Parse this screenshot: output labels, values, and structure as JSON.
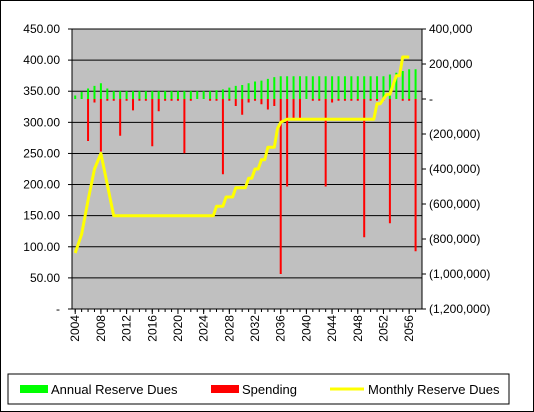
{
  "chart_data": {
    "type": "bar",
    "plot_background": "#c0c0c0",
    "grid": true,
    "legend_position": "bottom",
    "x_tick_labels": [
      "2004",
      "2008",
      "2012",
      "2016",
      "2020",
      "2024",
      "2028",
      "2032",
      "2036",
      "2040",
      "2044",
      "2048",
      "2052",
      "2056"
    ],
    "x_tick_years": [
      2004,
      2008,
      2012,
      2016,
      2020,
      2024,
      2028,
      2032,
      2036,
      2040,
      2044,
      2048,
      2052,
      2056
    ],
    "y_left": {
      "ylim": [
        0,
        450
      ],
      "tick_values": [
        0,
        50,
        100,
        150,
        200,
        250,
        300,
        350,
        400,
        450
      ],
      "tick_labels": [
        "-",
        "50.00",
        "100.00",
        "150.00",
        "200.00",
        "250.00",
        "300.00",
        "350.00",
        "400.00",
        "450.00"
      ]
    },
    "y_right": {
      "ylim": [
        -1200000,
        400000
      ],
      "tick_values": [
        400000,
        200000,
        0,
        -200000,
        -400000,
        -600000,
        -800000,
        -1000000,
        -1200000
      ],
      "tick_labels": [
        "400,000",
        "200,000",
        "-",
        "(200,000)",
        "(400,000)",
        "(600,000)",
        "(800,000)",
        "(1,000,000)",
        "(1,200,000)"
      ]
    },
    "years": [
      2004,
      2005,
      2006,
      2007,
      2008,
      2009,
      2010,
      2011,
      2012,
      2013,
      2014,
      2015,
      2016,
      2017,
      2018,
      2019,
      2020,
      2021,
      2022,
      2023,
      2024,
      2025,
      2026,
      2027,
      2028,
      2029,
      2030,
      2031,
      2032,
      2033,
      2034,
      2035,
      2036,
      2037,
      2038,
      2039,
      2040,
      2041,
      2042,
      2043,
      2044,
      2045,
      2046,
      2047,
      2048,
      2049,
      2050,
      2051,
      2052,
      2053,
      2054,
      2055,
      2056,
      2057
    ],
    "series": [
      {
        "name": "Annual Reserve Dues",
        "color": "#00ff00",
        "axis": "right",
        "values": [
          20000,
          40000,
          60000,
          75000,
          90000,
          60000,
          45000,
          45000,
          45000,
          45000,
          45000,
          45000,
          45000,
          45000,
          45000,
          45000,
          45000,
          45000,
          45000,
          45000,
          45000,
          45000,
          50000,
          55000,
          65000,
          75000,
          80000,
          90000,
          100000,
          105000,
          115000,
          125000,
          130000,
          130000,
          130000,
          130000,
          130000,
          130000,
          130000,
          130000,
          130000,
          130000,
          130000,
          130000,
          130000,
          130000,
          130000,
          130000,
          130000,
          140000,
          150000,
          160000,
          170000,
          170000
        ]
      },
      {
        "name": "Spending",
        "color": "#ff0000",
        "axis": "right",
        "values": [
          0,
          0,
          -240000,
          -20000,
          -300000,
          -10000,
          -10000,
          -210000,
          -10000,
          -65000,
          -10000,
          -10000,
          -270000,
          -70000,
          -10000,
          -10000,
          -10000,
          -310000,
          -10000,
          0,
          0,
          -10000,
          -10000,
          -430000,
          -10000,
          -40000,
          -90000,
          -20000,
          -10000,
          -30000,
          -60000,
          -40000,
          -1000000,
          -500000,
          -110000,
          -120000,
          0,
          -10000,
          -10000,
          -500000,
          -20000,
          -10000,
          -10000,
          -10000,
          -10000,
          -790000,
          -10000,
          -10000,
          -10000,
          -710000,
          0,
          -10000,
          -10000,
          -870000
        ]
      },
      {
        "name": "Monthly Reserve Dues",
        "color": "#ffff00",
        "axis": "left",
        "line_years": [
          2004,
          2005,
          2006,
          2007,
          2008,
          2010,
          2024,
          2025.5,
          2026,
          2027,
          2027.5,
          2028.5,
          2029,
          2030.5,
          2031,
          2031.5,
          2032,
          2032.5,
          2033,
          2033.5,
          2034,
          2035,
          2035.5,
          2036,
          2037,
          2050,
          2050.5,
          2051,
          2051.5,
          2052.5,
          2053,
          2054,
          2054.5,
          2055,
          2056
        ],
        "line_values": [
          90,
          120,
          175,
          225,
          250,
          150,
          150,
          150,
          165,
          165,
          180,
          180,
          195,
          195,
          210,
          210,
          225,
          225,
          240,
          240,
          260,
          260,
          290,
          300,
          305,
          305,
          305,
          330,
          330,
          345,
          345,
          375,
          375,
          405,
          405
        ]
      }
    ]
  },
  "legend": {
    "items": [
      {
        "label": "Annual Reserve Dues",
        "color": "#00ff00"
      },
      {
        "label": "Spending",
        "color": "#ff0000"
      },
      {
        "label": "Monthly Reserve Dues",
        "color": "#ffff00"
      }
    ]
  }
}
